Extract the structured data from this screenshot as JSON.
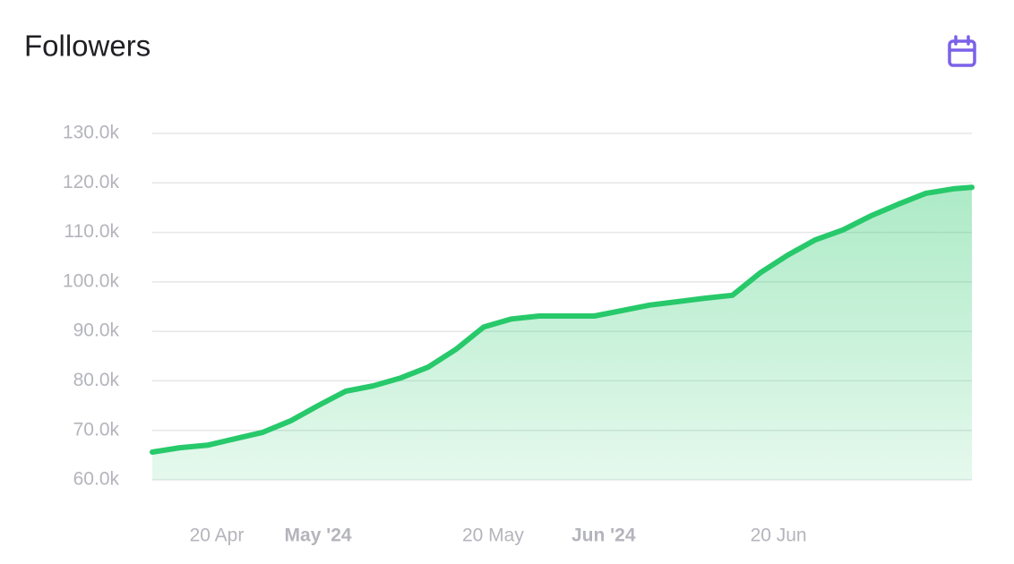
{
  "chart_data": {
    "type": "area",
    "title": "Followers",
    "x": [
      "2024-04-13",
      "2024-04-16",
      "2024-04-19",
      "2024-04-22",
      "2024-04-25",
      "2024-04-28",
      "2024-05-01",
      "2024-05-04",
      "2024-05-07",
      "2024-05-10",
      "2024-05-13",
      "2024-05-16",
      "2024-05-19",
      "2024-05-22",
      "2024-05-25",
      "2024-05-28",
      "2024-05-31",
      "2024-06-03",
      "2024-06-06",
      "2024-06-09",
      "2024-06-12",
      "2024-06-15",
      "2024-06-18",
      "2024-06-21",
      "2024-06-24",
      "2024-06-27",
      "2024-06-30",
      "2024-07-03",
      "2024-07-06",
      "2024-07-09",
      "2024-07-11"
    ],
    "values": [
      65600,
      66500,
      67000,
      68300,
      69600,
      71900,
      75000,
      77900,
      79000,
      80600,
      82800,
      86400,
      90900,
      92500,
      93100,
      93100,
      93100,
      94200,
      95300,
      96000,
      96700,
      97300,
      101800,
      105400,
      108500,
      110500,
      113300,
      115700,
      117900,
      118800,
      119100
    ],
    "color": "#27c96a",
    "xlim": [
      "2024-04-13",
      "2024-07-11"
    ],
    "xticks": [
      {
        "value": "2024-04-20",
        "label": "20 Apr"
      },
      {
        "value": "2024-05-01",
        "label": "May '24"
      },
      {
        "value": "2024-05-20",
        "label": "20 May"
      },
      {
        "value": "2024-06-01",
        "label": "Jun '24"
      },
      {
        "value": "2024-06-20",
        "label": "20 Jun"
      }
    ],
    "ylim": [
      60000,
      130000
    ],
    "yticks": [
      {
        "value": 60000,
        "label": "60.0k"
      },
      {
        "value": 70000,
        "label": "70.0k"
      },
      {
        "value": 80000,
        "label": "80.0k"
      },
      {
        "value": 90000,
        "label": "90.0k"
      },
      {
        "value": 100000,
        "label": "100.0k"
      },
      {
        "value": 110000,
        "label": "110.0k"
      },
      {
        "value": 120000,
        "label": "120.0k"
      },
      {
        "value": 130000,
        "label": "130.0k"
      }
    ],
    "grid": true
  }
}
